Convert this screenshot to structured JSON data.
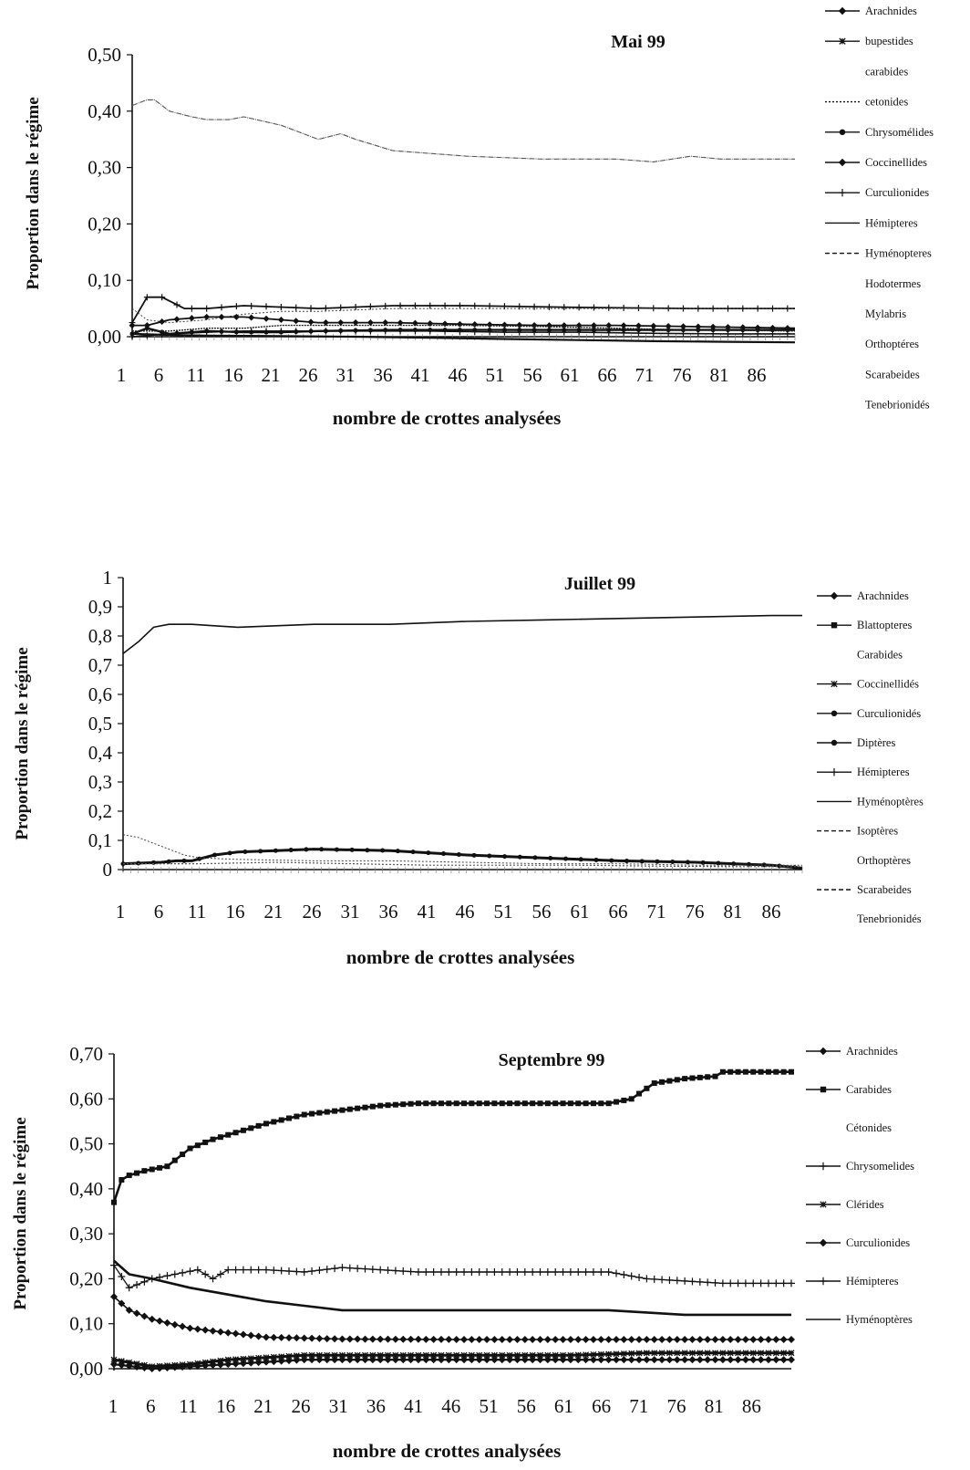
{
  "chart_data": [
    {
      "type": "line",
      "title": "Mai 99",
      "xlabel": "nombre de crottes analysées",
      "ylabel": "Proportion dans le régime",
      "y_ticks": [
        "0,00",
        "0,10",
        "0,20",
        "0,30",
        "0,40",
        "0,50"
      ],
      "ylim": [
        0,
        0.5
      ],
      "x_ticks": [
        "1",
        "6",
        "11",
        "16",
        "21",
        "26",
        "31",
        "36",
        "41",
        "46",
        "51",
        "56",
        "61",
        "66",
        "71",
        "76",
        "81",
        "86"
      ],
      "xlim": [
        1,
        90
      ],
      "legend": [
        "Arachnides",
        "bupestides",
        "carabides",
        "cetonides",
        "Chrysomélides",
        "Coccinellides",
        "Curculionides",
        "Hémipteres",
        "Hyménopteres",
        "Hodotermes",
        "Mylabris",
        "Orthoptéres",
        "Scarabeides",
        "Tenebrionidés"
      ],
      "legend_position": "right",
      "series": [
        {
          "x": [
            1,
            3,
            4,
            6,
            9,
            11,
            14,
            16,
            21,
            26,
            29,
            31,
            36,
            46,
            56,
            66,
            71,
            76,
            80,
            90
          ],
          "values": [
            0.41,
            0.42,
            0.42,
            0.4,
            0.39,
            0.385,
            0.385,
            0.39,
            0.375,
            0.35,
            0.36,
            0.35,
            0.33,
            0.32,
            0.315,
            0.315,
            0.31,
            0.32,
            0.315,
            0.315
          ]
        },
        {
          "x": [
            1,
            3,
            5,
            8,
            11,
            16,
            26,
            36,
            46,
            61,
            76,
            90
          ],
          "values": [
            0.025,
            0.07,
            0.07,
            0.05,
            0.05,
            0.055,
            0.05,
            0.055,
            0.055,
            0.052,
            0.05,
            0.05
          ]
        },
        {
          "x": [
            1,
            3,
            6,
            11,
            16,
            21,
            26,
            36,
            46,
            56,
            66,
            76,
            90
          ],
          "values": [
            0.05,
            0.03,
            0.025,
            0.03,
            0.04,
            0.045,
            0.045,
            0.05,
            0.05,
            0.05,
            0.05,
            0.05,
            0.05
          ]
        },
        {
          "x": [
            1,
            3,
            6,
            11,
            16,
            21,
            26,
            36,
            46,
            56,
            66,
            76,
            90
          ],
          "values": [
            0.02,
            0.02,
            0.03,
            0.035,
            0.035,
            0.03,
            0.025,
            0.025,
            0.022,
            0.02,
            0.02,
            0.018,
            0.015
          ]
        },
        {
          "x": [
            1,
            3,
            6,
            11,
            16,
            21,
            26,
            36,
            46,
            56,
            66,
            76,
            90
          ],
          "values": [
            0.005,
            0.015,
            0.005,
            0.01,
            0.008,
            0.008,
            0.01,
            0.012,
            0.012,
            0.012,
            0.012,
            0.012,
            0.012
          ]
        },
        {
          "x": [
            1,
            6,
            11,
            16,
            21,
            26,
            36,
            46,
            56,
            66,
            76,
            90
          ],
          "values": [
            0.01,
            0.01,
            0.015,
            0.015,
            0.02,
            0.02,
            0.02,
            0.02,
            0.018,
            0.015,
            0.012,
            0.01
          ]
        },
        {
          "x": [
            1,
            6,
            11,
            16,
            21,
            31,
            41,
            51,
            61,
            71,
            81,
            90
          ],
          "values": [
            0,
            0.005,
            0.008,
            0.01,
            0.01,
            0.01,
            0.01,
            0.008,
            0.008,
            0.006,
            0.005,
            0.005
          ]
        },
        {
          "x": [
            1,
            6,
            11,
            21,
            31,
            41,
            51,
            61,
            71,
            81,
            90
          ],
          "values": [
            0.005,
            0.003,
            0.002,
            0.001,
            0,
            -0.002,
            -0.004,
            -0.006,
            -0.008,
            -0.009,
            -0.01
          ]
        }
      ]
    },
    {
      "type": "line",
      "title": "Juillet 99",
      "xlabel": "nombre de crottes analysées",
      "ylabel": "Proportion dans le régime",
      "y_ticks": [
        "0",
        "0,1",
        "0,2",
        "0,3",
        "0,4",
        "0,5",
        "0,6",
        "0,7",
        "0,8",
        "0,9",
        "1"
      ],
      "ylim": [
        0,
        1
      ],
      "x_ticks": [
        "1",
        "6",
        "11",
        "16",
        "21",
        "26",
        "31",
        "36",
        "41",
        "46",
        "51",
        "56",
        "61",
        "66",
        "71",
        "76",
        "81",
        "86"
      ],
      "xlim": [
        1,
        90
      ],
      "legend": [
        "Arachnides",
        "Blattopteres",
        "Carabides",
        "Coccinellidés",
        "Curculionidés",
        "Diptères",
        "Hémipteres",
        "Hyménoptères",
        "Isoptères",
        "Orthoptères",
        "Scarabeides",
        "Tenebrionidés"
      ],
      "legend_position": "right",
      "series": [
        {
          "x": [
            1,
            3,
            5,
            7,
            10,
            13,
            16,
            21,
            26,
            36,
            46,
            56,
            66,
            76,
            86,
            90
          ],
          "values": [
            0.74,
            0.78,
            0.83,
            0.84,
            0.84,
            0.835,
            0.83,
            0.835,
            0.84,
            0.84,
            0.85,
            0.855,
            0.86,
            0.865,
            0.87,
            0.87
          ]
        },
        {
          "x": [
            1,
            6,
            8,
            10,
            13,
            16,
            21,
            26,
            36,
            46,
            56,
            66,
            76,
            86,
            90
          ],
          "values": [
            0.02,
            0.025,
            0.03,
            0.03,
            0.05,
            0.06,
            0.065,
            0.07,
            0.065,
            0.05,
            0.04,
            0.03,
            0.025,
            0.015,
            0.005
          ]
        },
        {
          "x": [
            1,
            3,
            6,
            9,
            11,
            16,
            26,
            36,
            46,
            56,
            66,
            76,
            90
          ],
          "values": [
            0.12,
            0.11,
            0.08,
            0.05,
            0.04,
            0.035,
            0.03,
            0.03,
            0.025,
            0.02,
            0.02,
            0.015,
            0.015
          ]
        },
        {
          "x": [
            1,
            11,
            21,
            31,
            41,
            51,
            61,
            71,
            81,
            90
          ],
          "values": [
            0.02,
            0.02,
            0.025,
            0.02,
            0.015,
            0.015,
            0.015,
            0.012,
            0.01,
            0.01
          ]
        }
      ]
    },
    {
      "type": "line",
      "title": "Septembre 99",
      "xlabel": "nombre de crottes analysées",
      "ylabel": "Proportion dans le régime",
      "y_ticks": [
        "0,00",
        "0,10",
        "0,20",
        "0,30",
        "0,40",
        "0,50",
        "0,60",
        "0,70"
      ],
      "ylim": [
        0,
        0.7
      ],
      "x_ticks": [
        "1",
        "6",
        "11",
        "16",
        "21",
        "26",
        "31",
        "36",
        "41",
        "46",
        "51",
        "56",
        "61",
        "66",
        "71",
        "76",
        "81",
        "86"
      ],
      "xlim": [
        1,
        90
      ],
      "legend": [
        "Arachnides",
        "Carabides",
        "Cétonides",
        "Chrysomelides",
        "Clérides",
        "Curculionides",
        "Hémipteres",
        "Hyménoptères"
      ],
      "legend_position": "right",
      "series": [
        {
          "x": [
            1,
            2,
            3,
            5,
            8,
            11,
            14,
            16,
            21,
            26,
            31,
            36,
            41,
            46,
            56,
            66,
            69,
            72,
            76,
            80,
            81,
            90
          ],
          "values": [
            0.37,
            0.42,
            0.43,
            0.44,
            0.45,
            0.49,
            0.51,
            0.52,
            0.545,
            0.565,
            0.575,
            0.585,
            0.59,
            0.59,
            0.59,
            0.59,
            0.6,
            0.635,
            0.645,
            0.65,
            0.66,
            0.66
          ]
        },
        {
          "x": [
            1,
            3,
            6,
            9,
            12,
            14,
            16,
            21,
            26,
            31,
            41,
            51,
            61,
            66,
            71,
            76,
            81,
            90
          ],
          "values": [
            0.23,
            0.18,
            0.2,
            0.21,
            0.22,
            0.2,
            0.22,
            0.22,
            0.215,
            0.225,
            0.215,
            0.215,
            0.215,
            0.215,
            0.2,
            0.195,
            0.19,
            0.19
          ]
        },
        {
          "x": [
            1,
            3,
            6,
            11,
            16,
            21,
            26,
            31,
            36,
            46,
            56,
            66,
            71,
            76,
            90
          ],
          "values": [
            0.24,
            0.21,
            0.2,
            0.18,
            0.165,
            0.15,
            0.14,
            0.13,
            0.13,
            0.13,
            0.13,
            0.13,
            0.125,
            0.12,
            0.12
          ]
        },
        {
          "x": [
            1,
            3,
            6,
            11,
            16,
            21,
            26,
            31,
            46,
            61,
            76,
            90
          ],
          "values": [
            0.16,
            0.13,
            0.11,
            0.09,
            0.08,
            0.07,
            0.068,
            0.066,
            0.065,
            0.065,
            0.065,
            0.065
          ]
        },
        {
          "x": [
            1,
            6,
            11,
            16,
            21,
            26,
            31,
            41,
            51,
            61,
            71,
            81,
            90
          ],
          "values": [
            0.02,
            0.005,
            0.01,
            0.02,
            0.025,
            0.03,
            0.03,
            0.03,
            0.03,
            0.03,
            0.035,
            0.035,
            0.035
          ]
        },
        {
          "x": [
            1,
            6,
            11,
            16,
            21,
            26,
            36,
            46,
            56,
            66,
            76,
            90
          ],
          "values": [
            0.01,
            0,
            0.005,
            0.01,
            0.015,
            0.02,
            0.02,
            0.02,
            0.02,
            0.02,
            0.02,
            0.02
          ]
        }
      ]
    }
  ]
}
